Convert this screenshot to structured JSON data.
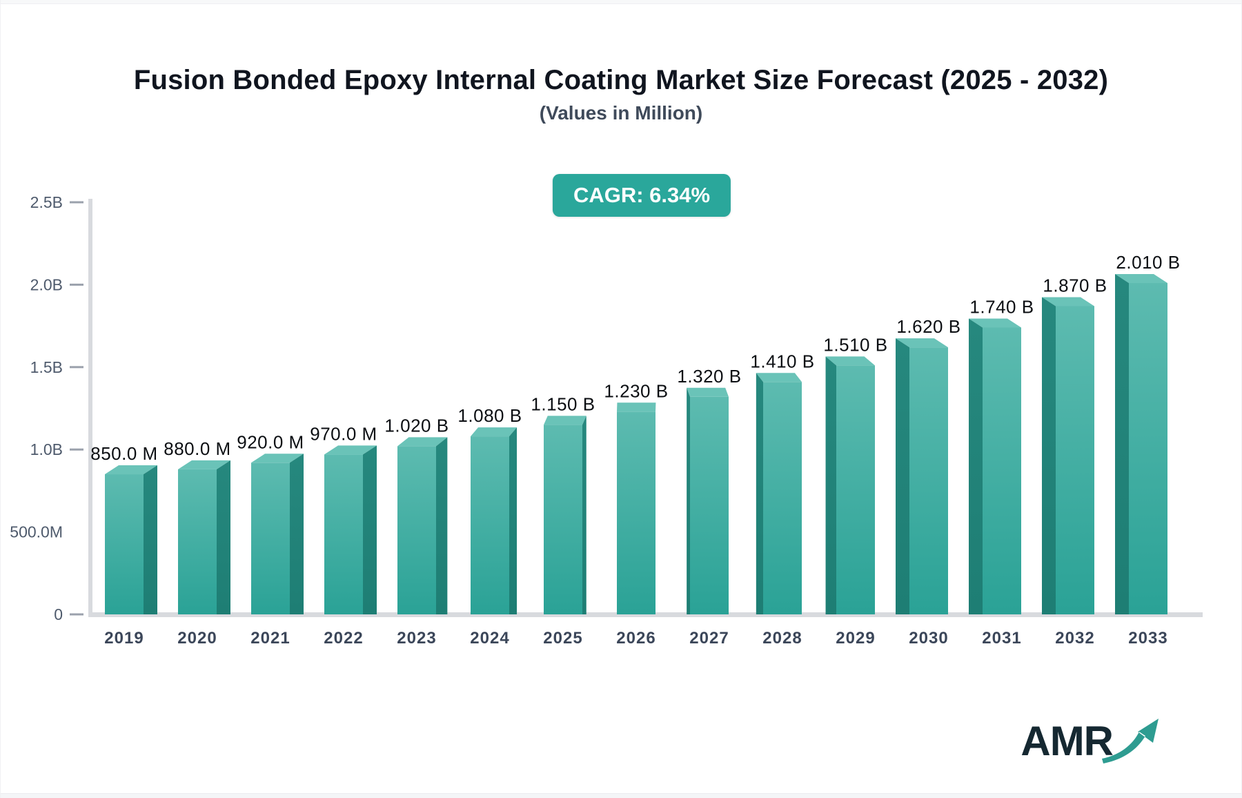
{
  "header": {
    "title": "Fusion Bonded Epoxy Internal Coating Market Size Forecast (2025 - 2032)",
    "subtitle": "(Values in Million)"
  },
  "badge": {
    "label": "CAGR: 6.34%",
    "bg_color": "#2aa79b",
    "text_color": "#ffffff"
  },
  "chart_data": {
    "type": "bar",
    "title": "Fusion Bonded Epoxy Internal Coating Market Size Forecast (2025 - 2032)",
    "subtitle": "(Values in Million)",
    "xlabel": "",
    "ylabel": "",
    "categories": [
      "2019",
      "2020",
      "2021",
      "2022",
      "2023",
      "2024",
      "2025",
      "2026",
      "2027",
      "2028",
      "2029",
      "2030",
      "2031",
      "2032",
      "2033"
    ],
    "values_millions": [
      850,
      880,
      920,
      970,
      1020,
      1080,
      1150,
      1230,
      1320,
      1410,
      1510,
      1620,
      1740,
      1870,
      2010
    ],
    "value_labels": [
      "850.0 M",
      "880.0 M",
      "920.0 M",
      "970.0 M",
      "1.020 B",
      "1.080 B",
      "1.150 B",
      "1.230 B",
      "1.320 B",
      "1.410 B",
      "1.510 B",
      "1.620 B",
      "1.740 B",
      "1.870 B",
      "2.010 B"
    ],
    "yticks": [
      {
        "label": "0",
        "value_millions": 0,
        "tick": true
      },
      {
        "label": "500.0M",
        "value_millions": 500,
        "tick": false
      },
      {
        "label": "1.0B",
        "value_millions": 1000,
        "tick": true
      },
      {
        "label": "1.5B",
        "value_millions": 1500,
        "tick": true
      },
      {
        "label": "2.0B",
        "value_millions": 2000,
        "tick": true
      },
      {
        "label": "2.5B",
        "value_millions": 2500,
        "tick": true
      }
    ],
    "ylim_millions": [
      0,
      2500
    ],
    "grid": false,
    "legend": "none",
    "colors": {
      "bar_front_top": "#5dbbb0",
      "bar_front_bottom": "#2aa296",
      "bar_top_face": "#6ac3b8",
      "bar_side_face": "#1e7e74",
      "axis_line": "#d8dade",
      "tick_dash": "#9ba1ac",
      "ytick_label": "#4e5a6c",
      "category_label": "#3b4659",
      "value_label": "#0b0e12"
    }
  },
  "logo": {
    "text": "AMR",
    "text_color": "#152831",
    "arrow_color": "#2e9c91"
  }
}
